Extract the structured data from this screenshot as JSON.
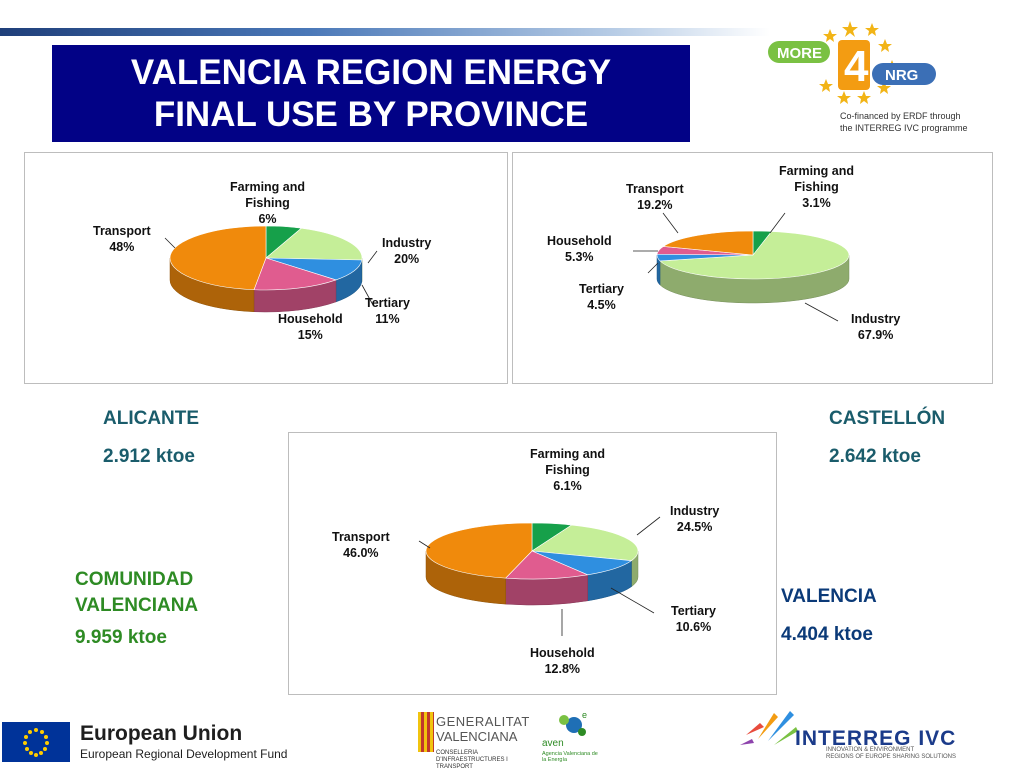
{
  "slide": {
    "title": "VALENCIA REGION ENERGY\nFINAL USE BY PROVINCE"
  },
  "logo": {
    "more": "MORE",
    "four": "4",
    "nrg": "NRG",
    "cofinanced_line1": "Co-financed by ERDF through",
    "cofinanced_line2": "the INTERREG IVC programme"
  },
  "regions": {
    "alicante": {
      "name": "ALICANTE",
      "value": "2.912 ktoe"
    },
    "castellon": {
      "name": "CASTELLÓN",
      "value": "2.642 ktoe"
    },
    "comunidad": {
      "name": "COMUNIDAD\nVALENCIANA",
      "value": "9.959 ktoe"
    },
    "valencia": {
      "name": "VALENCIA",
      "value": "4.404 ktoe"
    }
  },
  "colors": {
    "title_bg": "#020286",
    "farming": "#16a04a",
    "industry": "#c5ee98",
    "tertiary": "#2f8fe0",
    "household": "#e05c8f",
    "transport": "#f08a0c",
    "region_teal": "#1a5c6b",
    "region_green": "#2e8b24",
    "region_blue": "#0b3a78"
  },
  "chart_data": [
    {
      "type": "pie",
      "region": "ALICANTE",
      "categories": [
        "Farming and Fishing",
        "Industry",
        "Tertiary",
        "Household",
        "Transport"
      ],
      "values": [
        6,
        20,
        11,
        15,
        48
      ],
      "labels": [
        "Farming and\nFishing\n6%",
        "Industry\n20%",
        "Tertiary\n11%",
        "Household\n15%",
        "Transport\n48%"
      ]
    },
    {
      "type": "pie",
      "region": "CASTELLÓN",
      "categories": [
        "Farming and Fishing",
        "Industry",
        "Tertiary",
        "Household",
        "Transport"
      ],
      "values": [
        3.1,
        67.9,
        4.5,
        5.3,
        19.2
      ],
      "labels": [
        "Farming and\nFishing\n3.1%",
        "Industry\n67.9%",
        "Tertiary\n4.5%",
        "Household\n5.3%",
        "Transport\n19.2%"
      ]
    },
    {
      "type": "pie",
      "region": "COMUNIDAD VALENCIANA",
      "categories": [
        "Farming and Fishing",
        "Industry",
        "Tertiary",
        "Household",
        "Transport"
      ],
      "values": [
        6.1,
        24.5,
        10.6,
        12.8,
        46.0
      ],
      "labels": [
        "Farming and\nFishing\n6.1%",
        "Industry\n24.5%",
        "Tertiary\n10.6%",
        "Household\n12.8%",
        "Transport\n46.0%"
      ]
    }
  ],
  "footer": {
    "eu_title": "European Union",
    "eu_subtitle": "European Regional Development Fund",
    "gv_line1": "GENERALITAT",
    "gv_line2": "VALENCIANA",
    "gv_line3": "CONSELLERIA D'INFRAESTRUCTURES I TRANSPORT",
    "aven_e": "e",
    "aven_name": "aven",
    "aven_sub": "Agencia Valenciana de la Energía",
    "interreg_title": "INTERREG IVC",
    "interreg_sub1": "INNOVATION & ENVIRONMENT",
    "interreg_sub2": "REGIONS OF EUROPE SHARING SOLUTIONS"
  }
}
